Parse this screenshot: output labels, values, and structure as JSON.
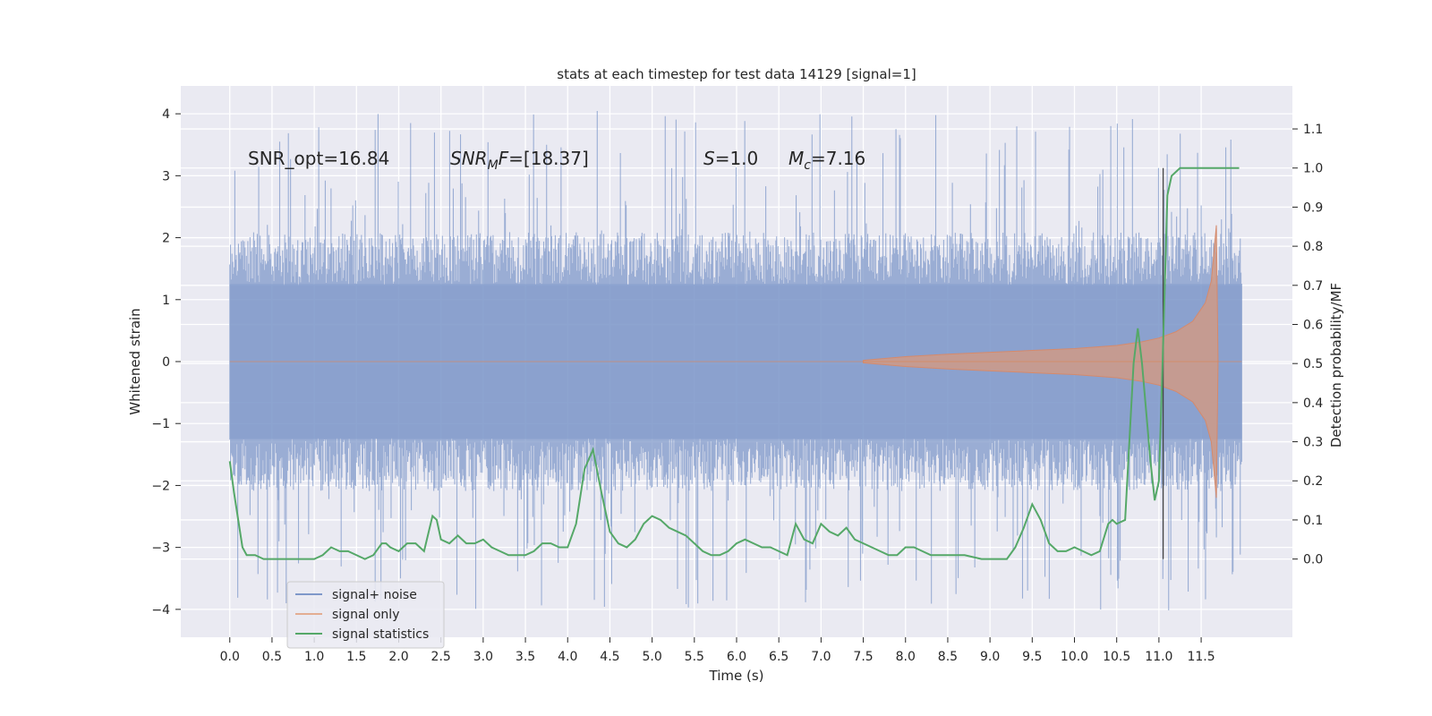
{
  "chart_data": {
    "type": "line",
    "title": "stats at each timestep for test data 14129 [signal=1]",
    "xlabel": "Time (s)",
    "ylabel": "Whitened strain",
    "ylabel_right": "Detection probability/MF",
    "xlim": [
      -0.58,
      12.58
    ],
    "ylim": [
      -4.45,
      4.45
    ],
    "ylim_right": [
      -0.2,
      1.21
    ],
    "x_ticks": [
      "0.0",
      "0.5",
      "1.0",
      "1.5",
      "2.0",
      "2.5",
      "3.0",
      "3.5",
      "4.0",
      "4.5",
      "5.0",
      "5.5",
      "6.0",
      "6.5",
      "7.0",
      "7.5",
      "8.0",
      "8.5",
      "9.0",
      "9.5",
      "10.0",
      "10.5",
      "11.0",
      "11.5"
    ],
    "y_ticks": [
      "4",
      "3",
      "2",
      "1",
      "0",
      "−1",
      "−2",
      "−3",
      "−4"
    ],
    "y_ticks_right": [
      "1.1",
      "1.0",
      "0.9",
      "0.8",
      "0.7",
      "0.6",
      "0.5",
      "0.4",
      "0.3",
      "0.2",
      "0.1",
      "0.0"
    ],
    "grid": true,
    "legend_placement": "lower-left",
    "annotations": {
      "snr_opt": "SNR_opt=16.84",
      "snr_mf_main": "SNR",
      "snr_mf_sub": "M",
      "snr_mf_rest": "F=[18.37]",
      "s_var": "S",
      "s_value": "=1.0",
      "mc_var": "M",
      "mc_sub": "c",
      "mc_value": "=7.16"
    },
    "vertical_marker_x": 11.05,
    "series": [
      {
        "name": "signal+ noise",
        "axis": "left",
        "color": "#7f98c9",
        "description": "noise band",
        "x_range": [
          0.0,
          11.98
        ],
        "typical_amplitude": 1.9,
        "peak_amplitude": 4.05
      },
      {
        "name": "signal only",
        "axis": "left",
        "color": "#dd8452",
        "description": "chirp envelope",
        "envelope": {
          "x": [
            7.5,
            8.0,
            8.5,
            9.0,
            9.5,
            10.0,
            10.5,
            10.8,
            11.0,
            11.2,
            11.4,
            11.55,
            11.62,
            11.66,
            11.68
          ],
          "amp": [
            0.02,
            0.08,
            0.12,
            0.15,
            0.18,
            0.21,
            0.26,
            0.32,
            0.38,
            0.48,
            0.65,
            0.95,
            1.3,
            1.9,
            2.2
          ]
        }
      },
      {
        "name": "signal statistics",
        "axis": "right",
        "color": "#55a868",
        "x": [
          0.0,
          0.05,
          0.1,
          0.15,
          0.2,
          0.3,
          0.4,
          0.5,
          0.6,
          0.7,
          0.8,
          0.9,
          1.0,
          1.1,
          1.2,
          1.3,
          1.4,
          1.5,
          1.6,
          1.7,
          1.8,
          1.85,
          1.9,
          2.0,
          2.1,
          2.2,
          2.3,
          2.4,
          2.45,
          2.5,
          2.6,
          2.7,
          2.8,
          2.9,
          3.0,
          3.1,
          3.2,
          3.3,
          3.4,
          3.5,
          3.6,
          3.7,
          3.8,
          3.9,
          4.0,
          4.1,
          4.2,
          4.3,
          4.4,
          4.5,
          4.6,
          4.7,
          4.8,
          4.9,
          5.0,
          5.1,
          5.2,
          5.3,
          5.4,
          5.5,
          5.6,
          5.7,
          5.8,
          5.9,
          6.0,
          6.1,
          6.2,
          6.3,
          6.4,
          6.5,
          6.6,
          6.7,
          6.8,
          6.9,
          7.0,
          7.1,
          7.2,
          7.3,
          7.4,
          7.5,
          7.6,
          7.7,
          7.8,
          7.9,
          8.0,
          8.1,
          8.2,
          8.3,
          8.5,
          8.7,
          8.9,
          9.0,
          9.1,
          9.2,
          9.3,
          9.4,
          9.5,
          9.6,
          9.7,
          9.8,
          9.9,
          10.0,
          10.1,
          10.2,
          10.3,
          10.4,
          10.45,
          10.5,
          10.6,
          10.7,
          10.75,
          10.8,
          10.9,
          10.95,
          11.0,
          11.05,
          11.1,
          11.15,
          11.2,
          11.25,
          11.3,
          11.4,
          11.5,
          11.6,
          11.7,
          11.8,
          11.9,
          11.95
        ],
        "y": [
          0.25,
          0.17,
          0.1,
          0.03,
          0.01,
          0.01,
          0.0,
          0.0,
          0.0,
          0.0,
          0.0,
          0.0,
          0.0,
          0.01,
          0.03,
          0.02,
          0.02,
          0.01,
          0.0,
          0.01,
          0.04,
          0.04,
          0.03,
          0.02,
          0.04,
          0.04,
          0.02,
          0.11,
          0.1,
          0.05,
          0.04,
          0.06,
          0.04,
          0.04,
          0.05,
          0.03,
          0.02,
          0.01,
          0.01,
          0.01,
          0.02,
          0.04,
          0.04,
          0.03,
          0.03,
          0.09,
          0.23,
          0.28,
          0.17,
          0.07,
          0.04,
          0.03,
          0.05,
          0.09,
          0.11,
          0.1,
          0.08,
          0.07,
          0.06,
          0.04,
          0.02,
          0.01,
          0.01,
          0.02,
          0.04,
          0.05,
          0.04,
          0.03,
          0.03,
          0.02,
          0.01,
          0.09,
          0.05,
          0.04,
          0.09,
          0.07,
          0.06,
          0.08,
          0.05,
          0.04,
          0.03,
          0.02,
          0.01,
          0.01,
          0.03,
          0.03,
          0.02,
          0.01,
          0.01,
          0.01,
          0.0,
          0.0,
          0.0,
          0.0,
          0.03,
          0.08,
          0.14,
          0.1,
          0.04,
          0.02,
          0.02,
          0.03,
          0.02,
          0.01,
          0.02,
          0.09,
          0.1,
          0.09,
          0.1,
          0.5,
          0.59,
          0.5,
          0.25,
          0.15,
          0.2,
          0.55,
          0.93,
          0.98,
          0.99,
          1.0,
          1.0,
          1.0,
          1.0,
          1.0,
          1.0,
          1.0,
          1.0,
          1.0
        ]
      }
    ]
  }
}
